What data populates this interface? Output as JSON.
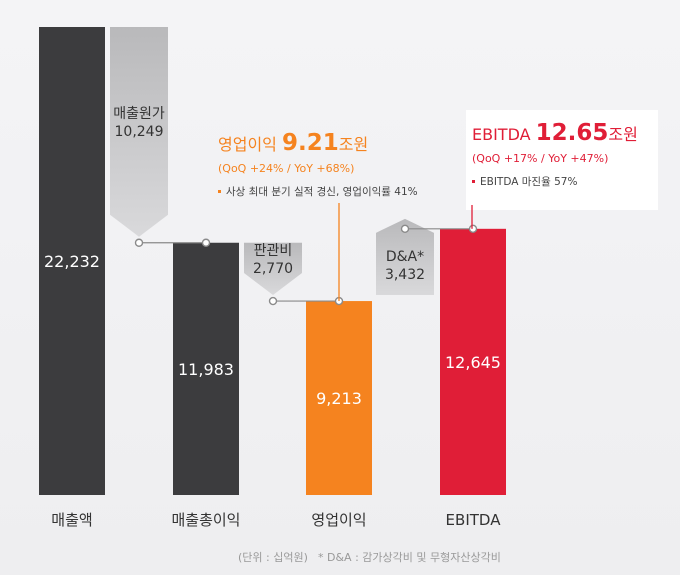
{
  "chart_data": {
    "type": "bar",
    "subtype": "waterfall",
    "categories": [
      "매출액",
      "매출총이익",
      "영업이익",
      "EBITDA"
    ],
    "values": [
      22232,
      11983,
      9213,
      12645
    ],
    "value_labels": [
      "22,232",
      "11,983",
      "9,213",
      "12,645"
    ],
    "bar_colors": [
      "#3c3c3e",
      "#3c3c3e",
      "#f5831f",
      "#e01e37"
    ],
    "category_colors": [
      "#333333",
      "#333333",
      "#f5831f",
      "#e01e37"
    ],
    "steps": [
      {
        "name": "매출원가",
        "value": 10249,
        "value_label": "10,249",
        "direction": "down",
        "from": 22232,
        "to": 11983
      },
      {
        "name": "판관비",
        "value": 2770,
        "value_label": "2,770",
        "direction": "down",
        "from": 11983,
        "to": 9213
      },
      {
        "name": "D&A*",
        "value": 3432,
        "value_label": "3,432",
        "direction": "up",
        "from": 9213,
        "to": 12645
      }
    ],
    "ylim": [
      0,
      22232
    ],
    "grid": false,
    "legend": "none",
    "annotations": [
      {
        "category": "영업이익",
        "color": "#f5831f",
        "title_prefix": "영업이익 ",
        "title_big": "9.21",
        "title_suffix": "조원",
        "subtitle": "(QoQ +24% / YoY +68%)",
        "note": "사상 최대 분기 실적 경신, 영업이익률 41%"
      },
      {
        "category": "EBITDA",
        "color": "#e01e37",
        "title_prefix": "EBITDA ",
        "title_big": "12.65",
        "title_suffix": "조원",
        "subtitle": "(QoQ +17% / YoY +47%)",
        "note": "EBITDA 마진율 57%"
      }
    ]
  },
  "footer": {
    "unit_note": "(단위 : 십억원)",
    "da_note": "* D&A : 감가상각비 및 무형자산상각비"
  }
}
